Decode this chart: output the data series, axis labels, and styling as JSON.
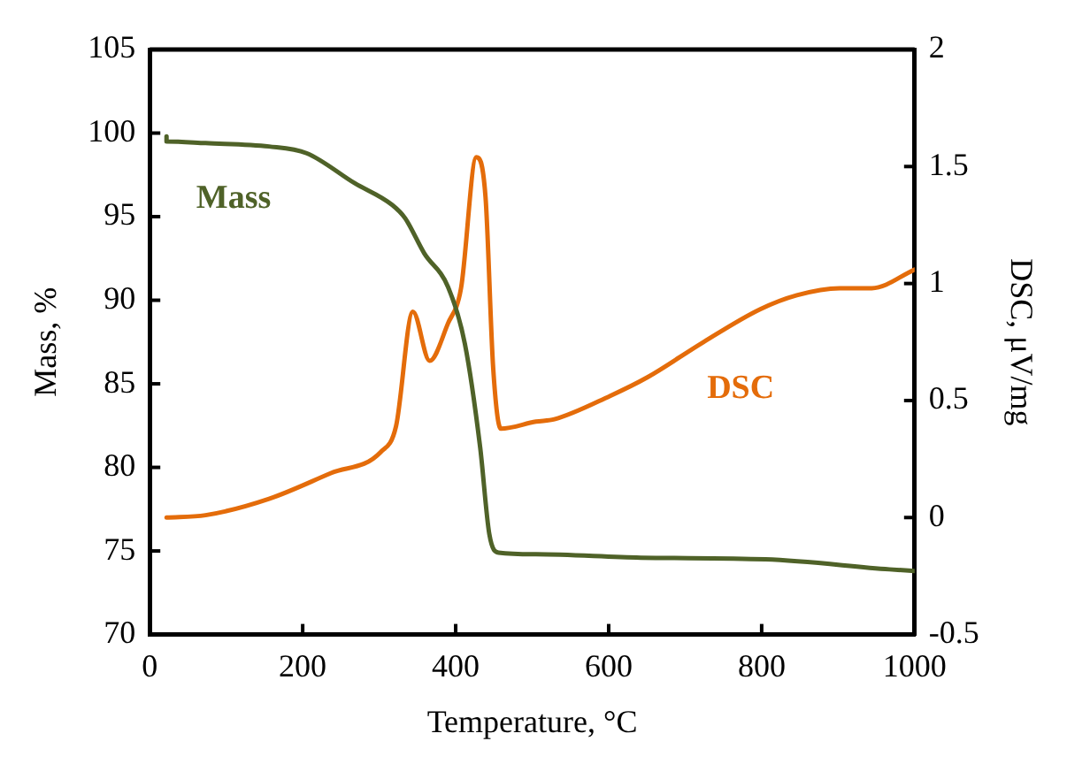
{
  "chart_data": {
    "type": "line",
    "xlabel": "Temperature, °C",
    "ylabel": "Mass, %",
    "y2label": "DSC, μV/mg",
    "xlim": [
      0,
      1000
    ],
    "xticks": [
      0,
      200,
      400,
      600,
      800,
      1000
    ],
    "ylim": [
      70,
      105
    ],
    "yticks": [
      70,
      75,
      80,
      85,
      90,
      95,
      100,
      105
    ],
    "y2lim": [
      -0.5,
      2
    ],
    "y2ticks": [
      -0.5,
      0,
      0.5,
      1,
      1.5,
      2
    ],
    "legend": false,
    "marker": "none",
    "line_style": "solid",
    "series": [
      {
        "name": "Mass",
        "color": "#4f6228",
        "x": [
          22,
          22,
          73,
          156,
          205,
          268,
          317,
          334,
          359,
          390,
          412,
          432,
          444,
          456,
          505,
          642,
          805,
          967,
          1000
        ],
        "values": [
          99.8,
          99.5,
          99.4,
          99.2,
          98.8,
          97.0,
          95.7,
          94.9,
          92.8,
          90.8,
          87.4,
          81.2,
          76.0,
          74.9,
          74.8,
          74.6,
          74.5,
          73.9,
          73.8
        ]
      },
      {
        "name": "DSC",
        "color": "#e46c0a",
        "axis": "y2",
        "x": [
          22,
          73,
          156,
          237,
          302,
          322,
          344,
          366,
          390,
          407,
          427,
          439,
          449,
          459,
          505,
          529,
          602,
          651,
          724,
          798,
          846,
          902,
          944,
          1000
        ],
        "values": [
          0.0,
          0.01,
          0.08,
          0.19,
          0.28,
          0.39,
          0.88,
          0.67,
          0.83,
          0.98,
          1.54,
          1.37,
          0.64,
          0.38,
          0.41,
          0.42,
          0.52,
          0.6,
          0.75,
          0.89,
          0.95,
          0.98,
          0.98,
          1.06
        ]
      }
    ]
  }
}
